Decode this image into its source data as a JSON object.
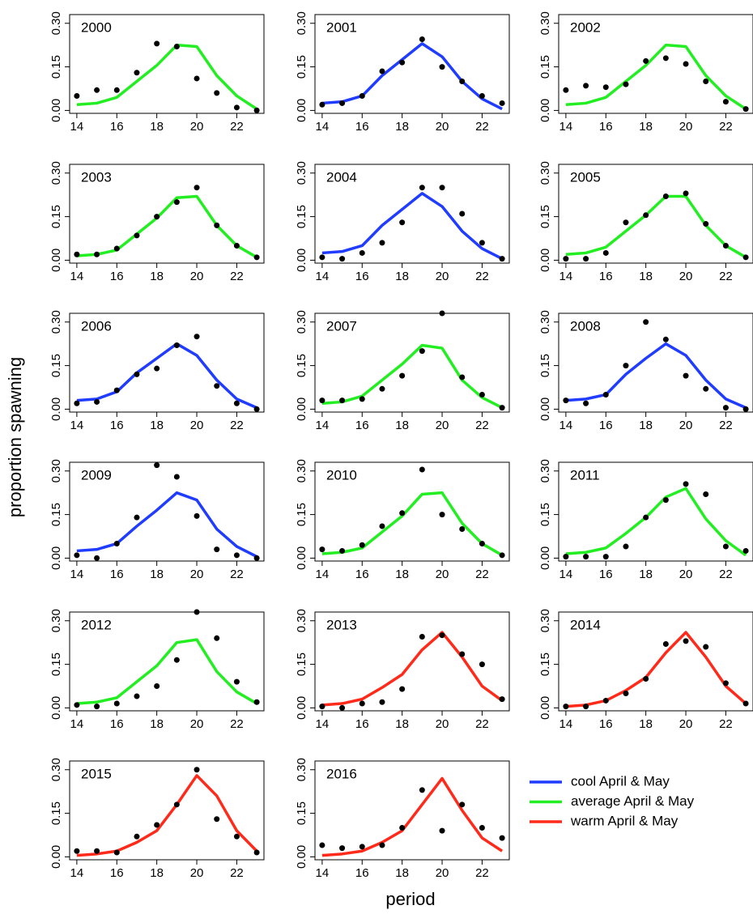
{
  "chart_data": {
    "type": "line",
    "ylabel": "proportion spawning",
    "xlabel": "period",
    "x": [
      14,
      15,
      16,
      17,
      18,
      19,
      20,
      21,
      22,
      23
    ],
    "xlim": [
      13.64,
      23.36
    ],
    "xticks": [
      14,
      16,
      18,
      20,
      22
    ],
    "ylim": [
      -0.01,
      0.33
    ],
    "yticks": [
      {
        "value": 0,
        "label": "0.00"
      },
      {
        "value": 0.15,
        "label": "0.15"
      },
      {
        "value": 0.3,
        "label": "0.30"
      }
    ],
    "point_color": "#000000",
    "legend": [
      {
        "name": "cool April & May",
        "color": "#1f3cff"
      },
      {
        "name": "average April & May",
        "color": "#22ee22"
      },
      {
        "name": "warm April & May",
        "color": "#ff2a1a"
      }
    ],
    "panels": [
      {
        "title": "2000",
        "color": "#22ee22",
        "fitted": [
          0.02,
          0.025,
          0.045,
          0.1,
          0.155,
          0.225,
          0.22,
          0.12,
          0.05,
          0.005
        ],
        "observed": [
          0.05,
          0.07,
          0.07,
          0.13,
          0.23,
          0.22,
          0.11,
          0.06,
          0.01,
          0.0
        ]
      },
      {
        "title": "2001",
        "color": "#1f3cff",
        "fitted": [
          0.025,
          0.03,
          0.05,
          0.12,
          0.175,
          0.23,
          0.185,
          0.1,
          0.04,
          0.005
        ],
        "observed": [
          0.02,
          0.025,
          0.05,
          0.135,
          0.165,
          0.245,
          0.15,
          0.1,
          0.05,
          0.025
        ]
      },
      {
        "title": "2002",
        "color": "#22ee22",
        "fitted": [
          0.02,
          0.025,
          0.045,
          0.1,
          0.155,
          0.225,
          0.22,
          0.12,
          0.05,
          0.005
        ],
        "observed": [
          0.07,
          0.085,
          0.08,
          0.09,
          0.17,
          0.18,
          0.16,
          0.1,
          0.03,
          0.005
        ]
      },
      {
        "title": "2003",
        "color": "#22ee22",
        "fitted": [
          0.015,
          0.02,
          0.035,
          0.09,
          0.145,
          0.215,
          0.22,
          0.12,
          0.05,
          0.01
        ],
        "observed": [
          0.02,
          0.02,
          0.04,
          0.085,
          0.15,
          0.2,
          0.25,
          0.12,
          0.05,
          0.01
        ]
      },
      {
        "title": "2004",
        "color": "#1f3cff",
        "fitted": [
          0.025,
          0.03,
          0.05,
          0.12,
          0.175,
          0.23,
          0.185,
          0.1,
          0.04,
          0.005
        ],
        "observed": [
          0.01,
          0.005,
          0.025,
          0.06,
          0.13,
          0.25,
          0.25,
          0.16,
          0.06,
          0.005
        ]
      },
      {
        "title": "2005",
        "color": "#22ee22",
        "fitted": [
          0.02,
          0.025,
          0.045,
          0.1,
          0.155,
          0.22,
          0.22,
          0.12,
          0.05,
          0.01
        ],
        "observed": [
          0.005,
          0.005,
          0.025,
          0.13,
          0.155,
          0.22,
          0.23,
          0.125,
          0.05,
          0.01
        ]
      },
      {
        "title": "2006",
        "color": "#1f3cff",
        "fitted": [
          0.03,
          0.035,
          0.06,
          0.125,
          0.175,
          0.225,
          0.185,
          0.1,
          0.035,
          0.005
        ],
        "observed": [
          0.02,
          0.025,
          0.065,
          0.12,
          0.14,
          0.22,
          0.25,
          0.08,
          0.02,
          0.0
        ]
      },
      {
        "title": "2007",
        "color": "#22ee22",
        "fitted": [
          0.02,
          0.025,
          0.045,
          0.1,
          0.155,
          0.22,
          0.21,
          0.1,
          0.04,
          0.005
        ],
        "observed": [
          0.03,
          0.03,
          0.035,
          0.07,
          0.115,
          0.2,
          0.33,
          0.11,
          0.05,
          0.005
        ]
      },
      {
        "title": "2008",
        "color": "#1f3cff",
        "fitted": [
          0.03,
          0.035,
          0.05,
          0.12,
          0.175,
          0.225,
          0.185,
          0.1,
          0.035,
          0.005
        ],
        "observed": [
          0.03,
          0.02,
          0.05,
          0.15,
          0.3,
          0.24,
          0.115,
          0.07,
          0.005,
          0.0
        ]
      },
      {
        "title": "2009",
        "color": "#1f3cff",
        "fitted": [
          0.025,
          0.03,
          0.05,
          0.11,
          0.165,
          0.225,
          0.2,
          0.1,
          0.04,
          0.005
        ],
        "observed": [
          0.01,
          0.0,
          0.05,
          0.14,
          0.32,
          0.28,
          0.145,
          0.03,
          0.01,
          0.0
        ]
      },
      {
        "title": "2010",
        "color": "#22ee22",
        "fitted": [
          0.015,
          0.02,
          0.035,
          0.09,
          0.145,
          0.22,
          0.225,
          0.12,
          0.05,
          0.01
        ],
        "observed": [
          0.03,
          0.025,
          0.045,
          0.11,
          0.155,
          0.305,
          0.15,
          0.1,
          0.05,
          0.01
        ]
      },
      {
        "title": "2011",
        "color": "#22ee22",
        "fitted": [
          0.015,
          0.02,
          0.035,
          0.085,
          0.14,
          0.21,
          0.24,
          0.135,
          0.06,
          0.01
        ],
        "observed": [
          0.005,
          0.005,
          0.005,
          0.04,
          0.14,
          0.2,
          0.255,
          0.22,
          0.04,
          0.025
        ]
      },
      {
        "title": "2012",
        "color": "#22ee22",
        "fitted": [
          0.015,
          0.02,
          0.035,
          0.09,
          0.145,
          0.225,
          0.235,
          0.125,
          0.055,
          0.015
        ],
        "observed": [
          0.01,
          0.005,
          0.015,
          0.04,
          0.075,
          0.165,
          0.33,
          0.24,
          0.09,
          0.02
        ]
      },
      {
        "title": "2013",
        "color": "#ff2a1a",
        "fitted": [
          0.01,
          0.015,
          0.03,
          0.07,
          0.115,
          0.2,
          0.26,
          0.175,
          0.075,
          0.025
        ],
        "observed": [
          0.005,
          0.0,
          0.015,
          0.02,
          0.065,
          0.245,
          0.25,
          0.185,
          0.15,
          0.03
        ]
      },
      {
        "title": "2014",
        "color": "#ff2a1a",
        "fitted": [
          0.005,
          0.01,
          0.025,
          0.06,
          0.105,
          0.19,
          0.26,
          0.175,
          0.075,
          0.015
        ],
        "observed": [
          0.005,
          0.005,
          0.025,
          0.05,
          0.1,
          0.22,
          0.23,
          0.21,
          0.085,
          0.015
        ]
      },
      {
        "title": "2015",
        "color": "#ff2a1a",
        "fitted": [
          0.005,
          0.01,
          0.02,
          0.05,
          0.09,
          0.18,
          0.28,
          0.21,
          0.09,
          0.02
        ],
        "observed": [
          0.02,
          0.02,
          0.015,
          0.07,
          0.11,
          0.18,
          0.3,
          0.13,
          0.07,
          0.015
        ]
      },
      {
        "title": "2016",
        "color": "#ff2a1a",
        "fitted": [
          0.005,
          0.01,
          0.02,
          0.05,
          0.09,
          0.18,
          0.27,
          0.16,
          0.065,
          0.02
        ],
        "observed": [
          0.04,
          0.03,
          0.035,
          0.04,
          0.1,
          0.23,
          0.09,
          0.18,
          0.1,
          0.065
        ]
      }
    ]
  }
}
